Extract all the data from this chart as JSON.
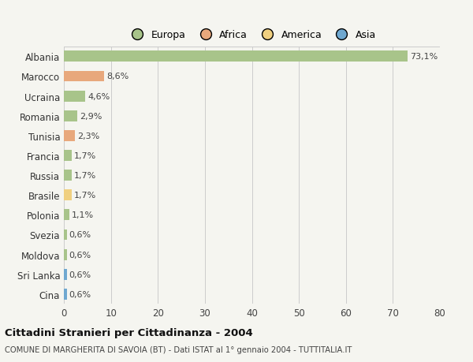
{
  "categories": [
    "Albania",
    "Marocco",
    "Ucraina",
    "Romania",
    "Tunisia",
    "Francia",
    "Russia",
    "Brasile",
    "Polonia",
    "Svezia",
    "Moldova",
    "Sri Lanka",
    "Cina"
  ],
  "values": [
    73.1,
    8.6,
    4.6,
    2.9,
    2.3,
    1.7,
    1.7,
    1.7,
    1.1,
    0.6,
    0.6,
    0.6,
    0.6
  ],
  "labels": [
    "73,1%",
    "8,6%",
    "4,6%",
    "2,9%",
    "2,3%",
    "1,7%",
    "1,7%",
    "1,7%",
    "1,1%",
    "0,6%",
    "0,6%",
    "0,6%",
    "0,6%"
  ],
  "colors": [
    "#a8c48a",
    "#e8a87c",
    "#a8c48a",
    "#a8c48a",
    "#e8a87c",
    "#a8c48a",
    "#a8c48a",
    "#f0d080",
    "#a8c48a",
    "#a8c48a",
    "#a8c48a",
    "#6fa8d0",
    "#6fa8d0"
  ],
  "legend": [
    {
      "label": "Europa",
      "color": "#a8c48a"
    },
    {
      "label": "Africa",
      "color": "#e8a87c"
    },
    {
      "label": "America",
      "color": "#f0d080"
    },
    {
      "label": "Asia",
      "color": "#6fa8d0"
    }
  ],
  "title": "Cittadini Stranieri per Cittadinanza - 2004",
  "subtitle": "COMUNE DI MARGHERITA DI SAVOIA (BT) - Dati ISTAT al 1° gennaio 2004 - TUTTITALIA.IT",
  "xlim": [
    0,
    80
  ],
  "xticks": [
    0,
    10,
    20,
    30,
    40,
    50,
    60,
    70,
    80
  ],
  "background_color": "#f5f5f0",
  "grid_color": "#cccccc",
  "bar_height": 0.55
}
